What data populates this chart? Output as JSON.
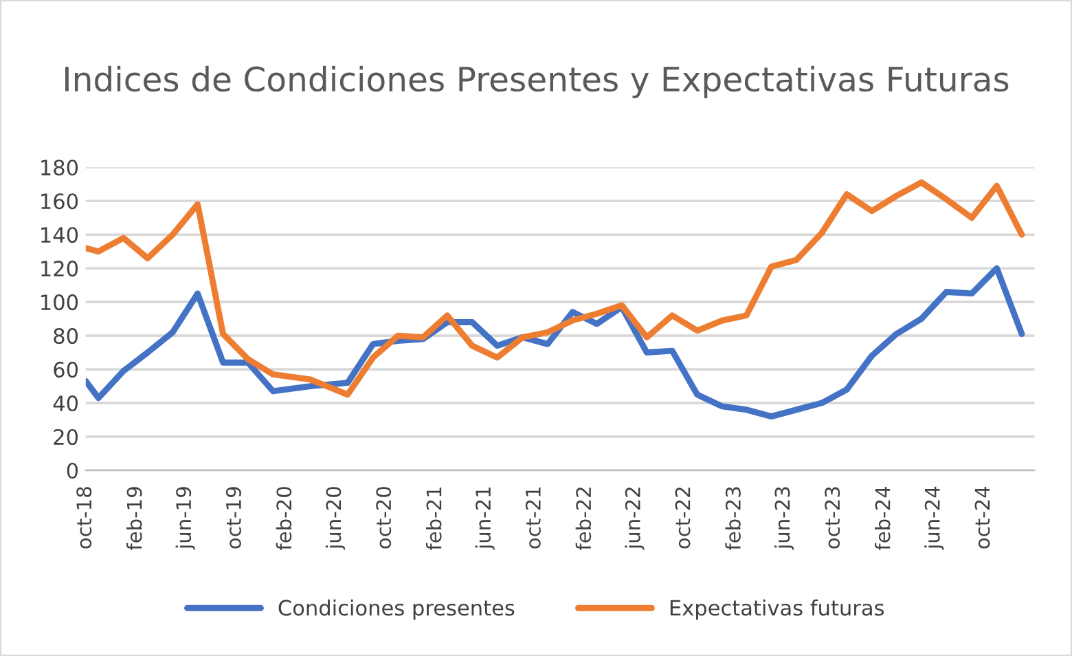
{
  "chart_data": {
    "type": "line",
    "title": "Indices de Condiciones Presentes y Expectativas Futuras",
    "x": [
      "2018-10",
      "2018-11",
      "2019-01",
      "2019-03",
      "2019-05",
      "2019-07",
      "2019-09",
      "2019-11",
      "2020-01",
      "2020-04",
      "2020-07",
      "2020-09",
      "2020-11",
      "2021-01",
      "2021-03",
      "2021-05",
      "2021-07",
      "2021-09",
      "2021-11",
      "2022-01",
      "2022-03",
      "2022-05",
      "2022-07",
      "2022-09",
      "2022-11",
      "2023-01",
      "2023-03",
      "2023-05",
      "2023-07",
      "2023-09",
      "2023-11",
      "2024-01",
      "2024-03",
      "2024-05",
      "2024-07",
      "2024-09",
      "2024-11",
      "2025-01"
    ],
    "series": [
      {
        "name": "Condiciones presentes",
        "color": "#4472c4",
        "values": [
          53,
          43,
          59,
          70,
          82,
          105,
          64,
          64,
          47,
          50,
          52,
          75,
          77,
          78,
          88,
          88,
          74,
          79,
          75,
          94,
          87,
          97,
          70,
          71,
          45,
          38,
          36,
          32,
          36,
          40,
          48,
          68,
          81,
          90,
          106,
          105,
          120,
          81
        ]
      },
      {
        "name": "Expectativas futuras",
        "color": "#ed7d31",
        "values": [
          132,
          130,
          138,
          126,
          140,
          158,
          81,
          66,
          57,
          54,
          45,
          67,
          80,
          79,
          92,
          74,
          67,
          79,
          82,
          89,
          93,
          98,
          79,
          92,
          83,
          89,
          92,
          121,
          125,
          141,
          164,
          154,
          163,
          171,
          161,
          150,
          169,
          140
        ]
      }
    ],
    "xlim": [
      "2018-10",
      "2025-02"
    ],
    "xticks": [
      {
        "value": "2018-10",
        "label": "oct-18"
      },
      {
        "value": "2019-02",
        "label": "feb-19"
      },
      {
        "value": "2019-06",
        "label": "jun-19"
      },
      {
        "value": "2019-10",
        "label": "oct-19"
      },
      {
        "value": "2020-02",
        "label": "feb-20"
      },
      {
        "value": "2020-06",
        "label": "jun-20"
      },
      {
        "value": "2020-10",
        "label": "oct-20"
      },
      {
        "value": "2021-02",
        "label": "feb-21"
      },
      {
        "value": "2021-06",
        "label": "jun-21"
      },
      {
        "value": "2021-10",
        "label": "oct-21"
      },
      {
        "value": "2022-02",
        "label": "feb-22"
      },
      {
        "value": "2022-06",
        "label": "jun-22"
      },
      {
        "value": "2022-10",
        "label": "oct-22"
      },
      {
        "value": "2023-02",
        "label": "feb-23"
      },
      {
        "value": "2023-06",
        "label": "jun-23"
      },
      {
        "value": "2023-10",
        "label": "oct-23"
      },
      {
        "value": "2024-02",
        "label": "feb-24"
      },
      {
        "value": "2024-06",
        "label": "jun-24"
      },
      {
        "value": "2024-10",
        "label": "oct-24"
      }
    ],
    "ylim": [
      0,
      180
    ],
    "yticks": [
      0,
      20,
      40,
      60,
      80,
      100,
      120,
      140,
      160,
      180
    ],
    "grid": "y",
    "legend": "bottom",
    "marker": "none",
    "line_style": "solid"
  }
}
